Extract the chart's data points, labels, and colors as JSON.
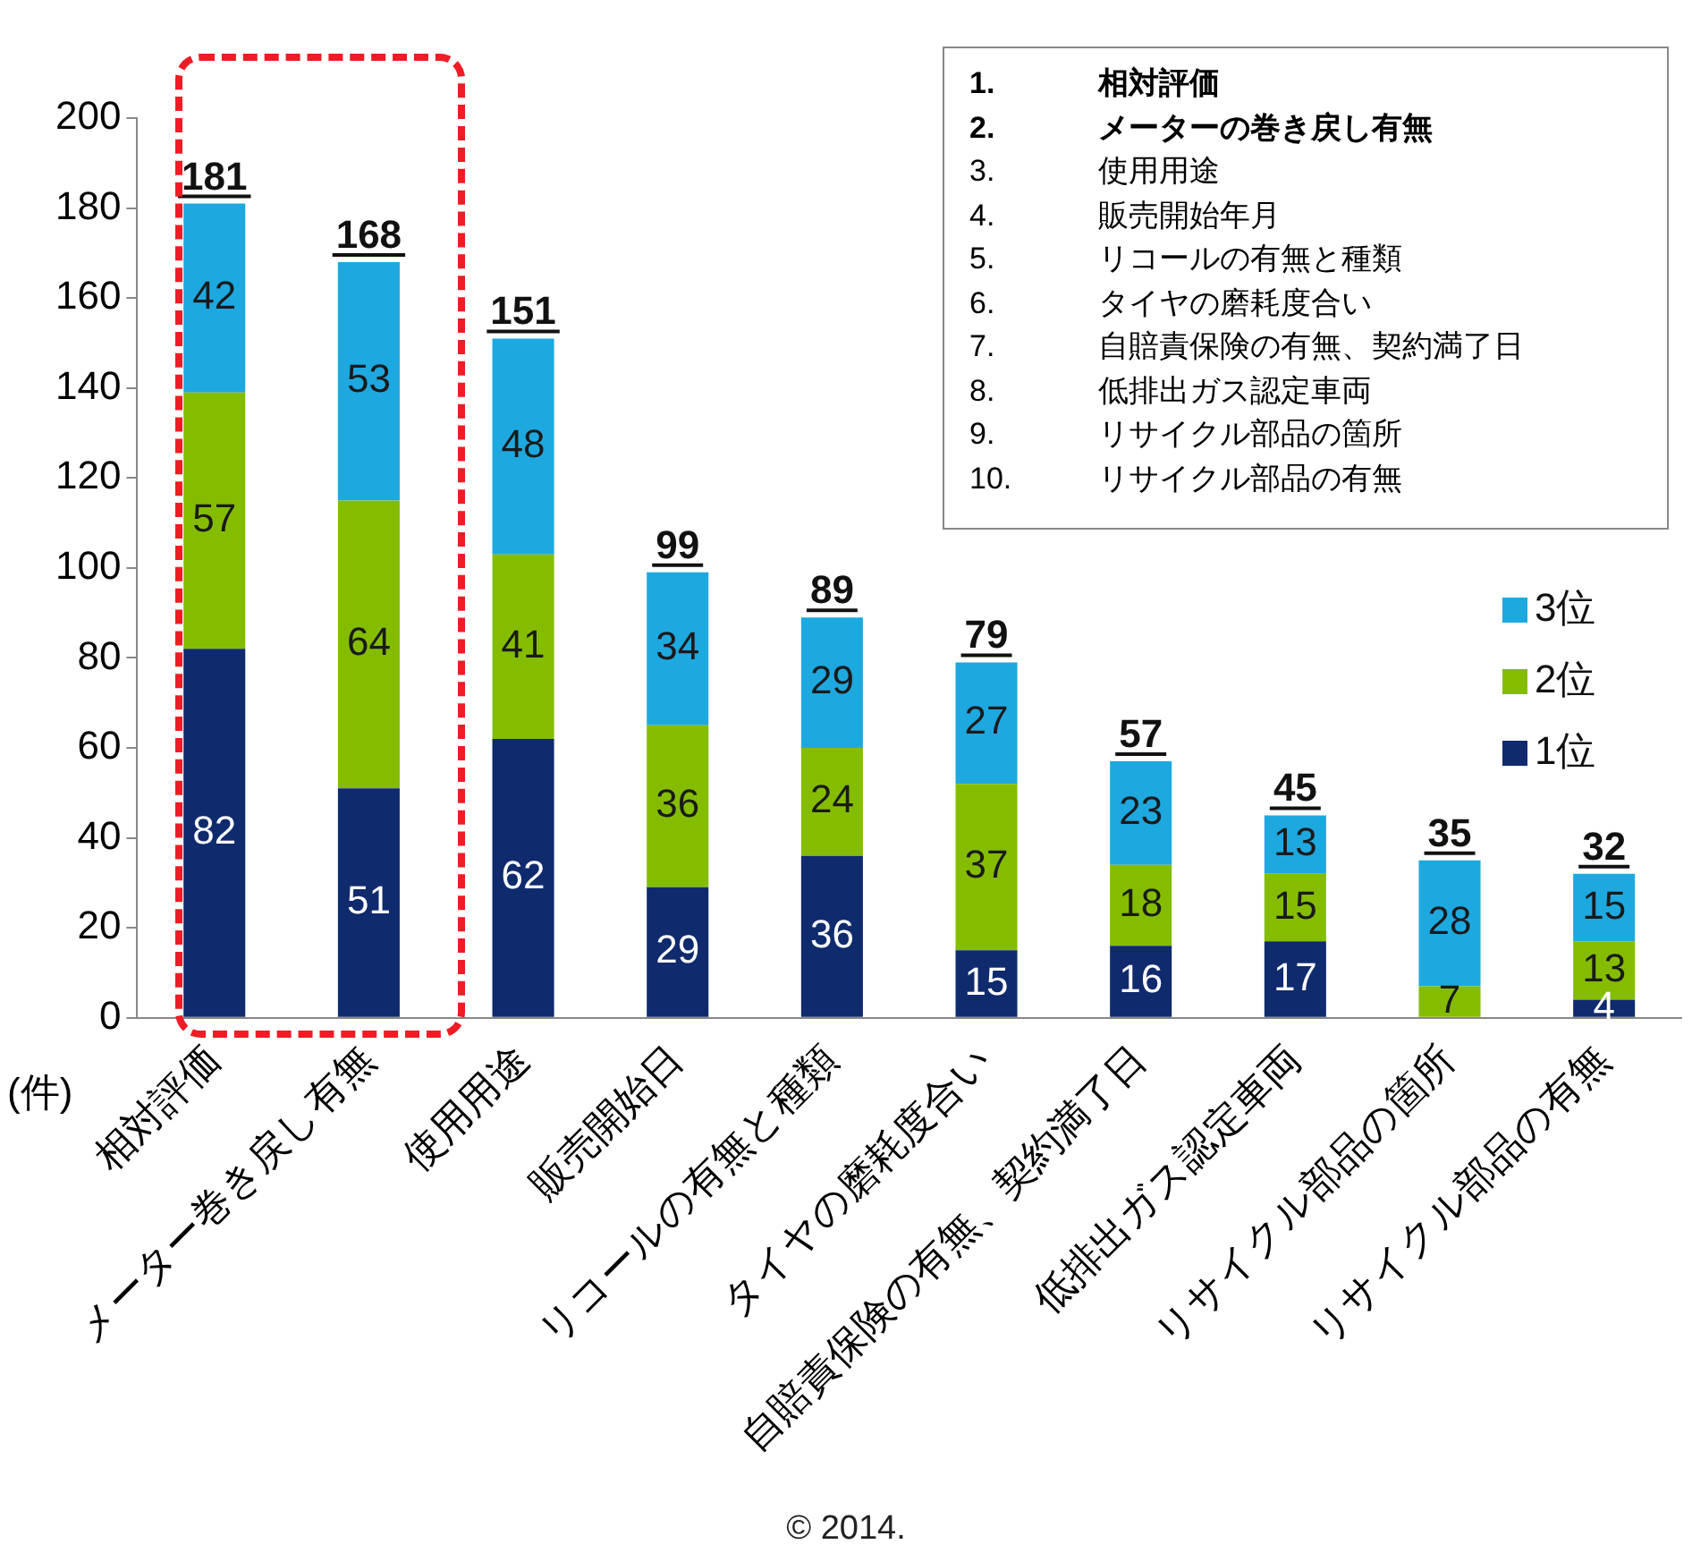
{
  "chart_data": {
    "type": "bar",
    "stacked": true,
    "ylabel": "(件)",
    "categories": [
      "相対評価",
      "メーター巻き戻し有無",
      "使用用途",
      "販売開始日",
      "リコールの有無と種類",
      "タイヤの磨耗度合い",
      "自賠責保険の有無、契約満了日",
      "低排出ガス認定車両",
      "リサイクル部品の箇所",
      "リサイクル部品の有無"
    ],
    "series": [
      {
        "name": "1位",
        "color": "#0f2b6e",
        "values": [
          82,
          51,
          62,
          29,
          36,
          15,
          16,
          17,
          0,
          4
        ],
        "value_labels": [
          "82",
          "51",
          "62",
          "29",
          "36",
          "15",
          "16",
          "17",
          null,
          "4"
        ]
      },
      {
        "name": "2位",
        "color": "#84bd00",
        "values": [
          57,
          64,
          41,
          36,
          24,
          37,
          18,
          15,
          7,
          13
        ],
        "value_labels": [
          "57",
          "64",
          "41",
          "36",
          "24",
          "37",
          "18",
          "15",
          "7",
          "13"
        ]
      },
      {
        "name": "3位",
        "color": "#1ea8e0",
        "values": [
          42,
          53,
          48,
          34,
          29,
          27,
          23,
          13,
          28,
          15
        ],
        "value_labels": [
          "42",
          "53",
          "48",
          "34",
          "29",
          "27",
          "23",
          "13",
          "28",
          "15"
        ]
      }
    ],
    "totals": [
      "181",
      "168",
      "151",
      "99",
      "89",
      "79",
      "57",
      "45",
      "35",
      "32"
    ],
    "ylim": [
      0,
      200
    ],
    "yticks": [
      0,
      20,
      40,
      60,
      80,
      100,
      120,
      140,
      160,
      180,
      200
    ],
    "grid": false,
    "legend": "right",
    "annotations": [
      "1.\t相対評価",
      "2.\tメーターの巻き戻し有無",
      "3.\t使用用途",
      "4.\t販売開始年月",
      "5.\tリコールの有無と種類",
      "6.\tタイヤの磨耗度合い",
      "7.\t自賠責保険の有無、契約満了日",
      "8.\t低排出ガス認定車両",
      "9.\tリサイクル部品の箇所",
      "10.\tリサイクル部品の有無",
      "© 2014."
    ]
  }
}
